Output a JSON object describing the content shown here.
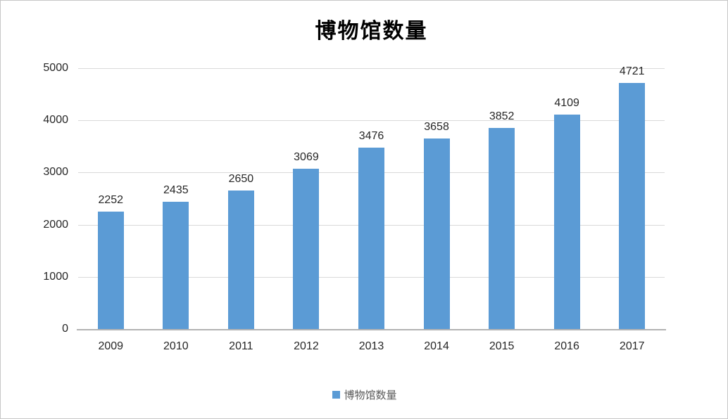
{
  "chart_data": {
    "type": "bar",
    "title": "博物馆数量",
    "categories": [
      "2009",
      "2010",
      "2011",
      "2012",
      "2013",
      "2014",
      "2015",
      "2016",
      "2017"
    ],
    "values": [
      2252,
      2435,
      2650,
      3069,
      3476,
      3658,
      3852,
      4109,
      4721
    ],
    "series_name": "博物馆数量",
    "xlabel": "",
    "ylabel": "",
    "ylim": [
      0,
      5000
    ],
    "yticks": [
      0,
      1000,
      2000,
      3000,
      4000,
      5000
    ],
    "grid": true,
    "data_labels_shown": true,
    "legend": {
      "position": "bottom",
      "label": "博物馆数量"
    },
    "colors": {
      "bar": "#5b9bd5",
      "gridline": "#d9d9d9",
      "axis_line": "#b3b3b3",
      "tick_text": "#262626",
      "data_label_text": "#262626",
      "legend_text": "#595959",
      "title_text": "#000000",
      "background": "#ffffff"
    }
  }
}
